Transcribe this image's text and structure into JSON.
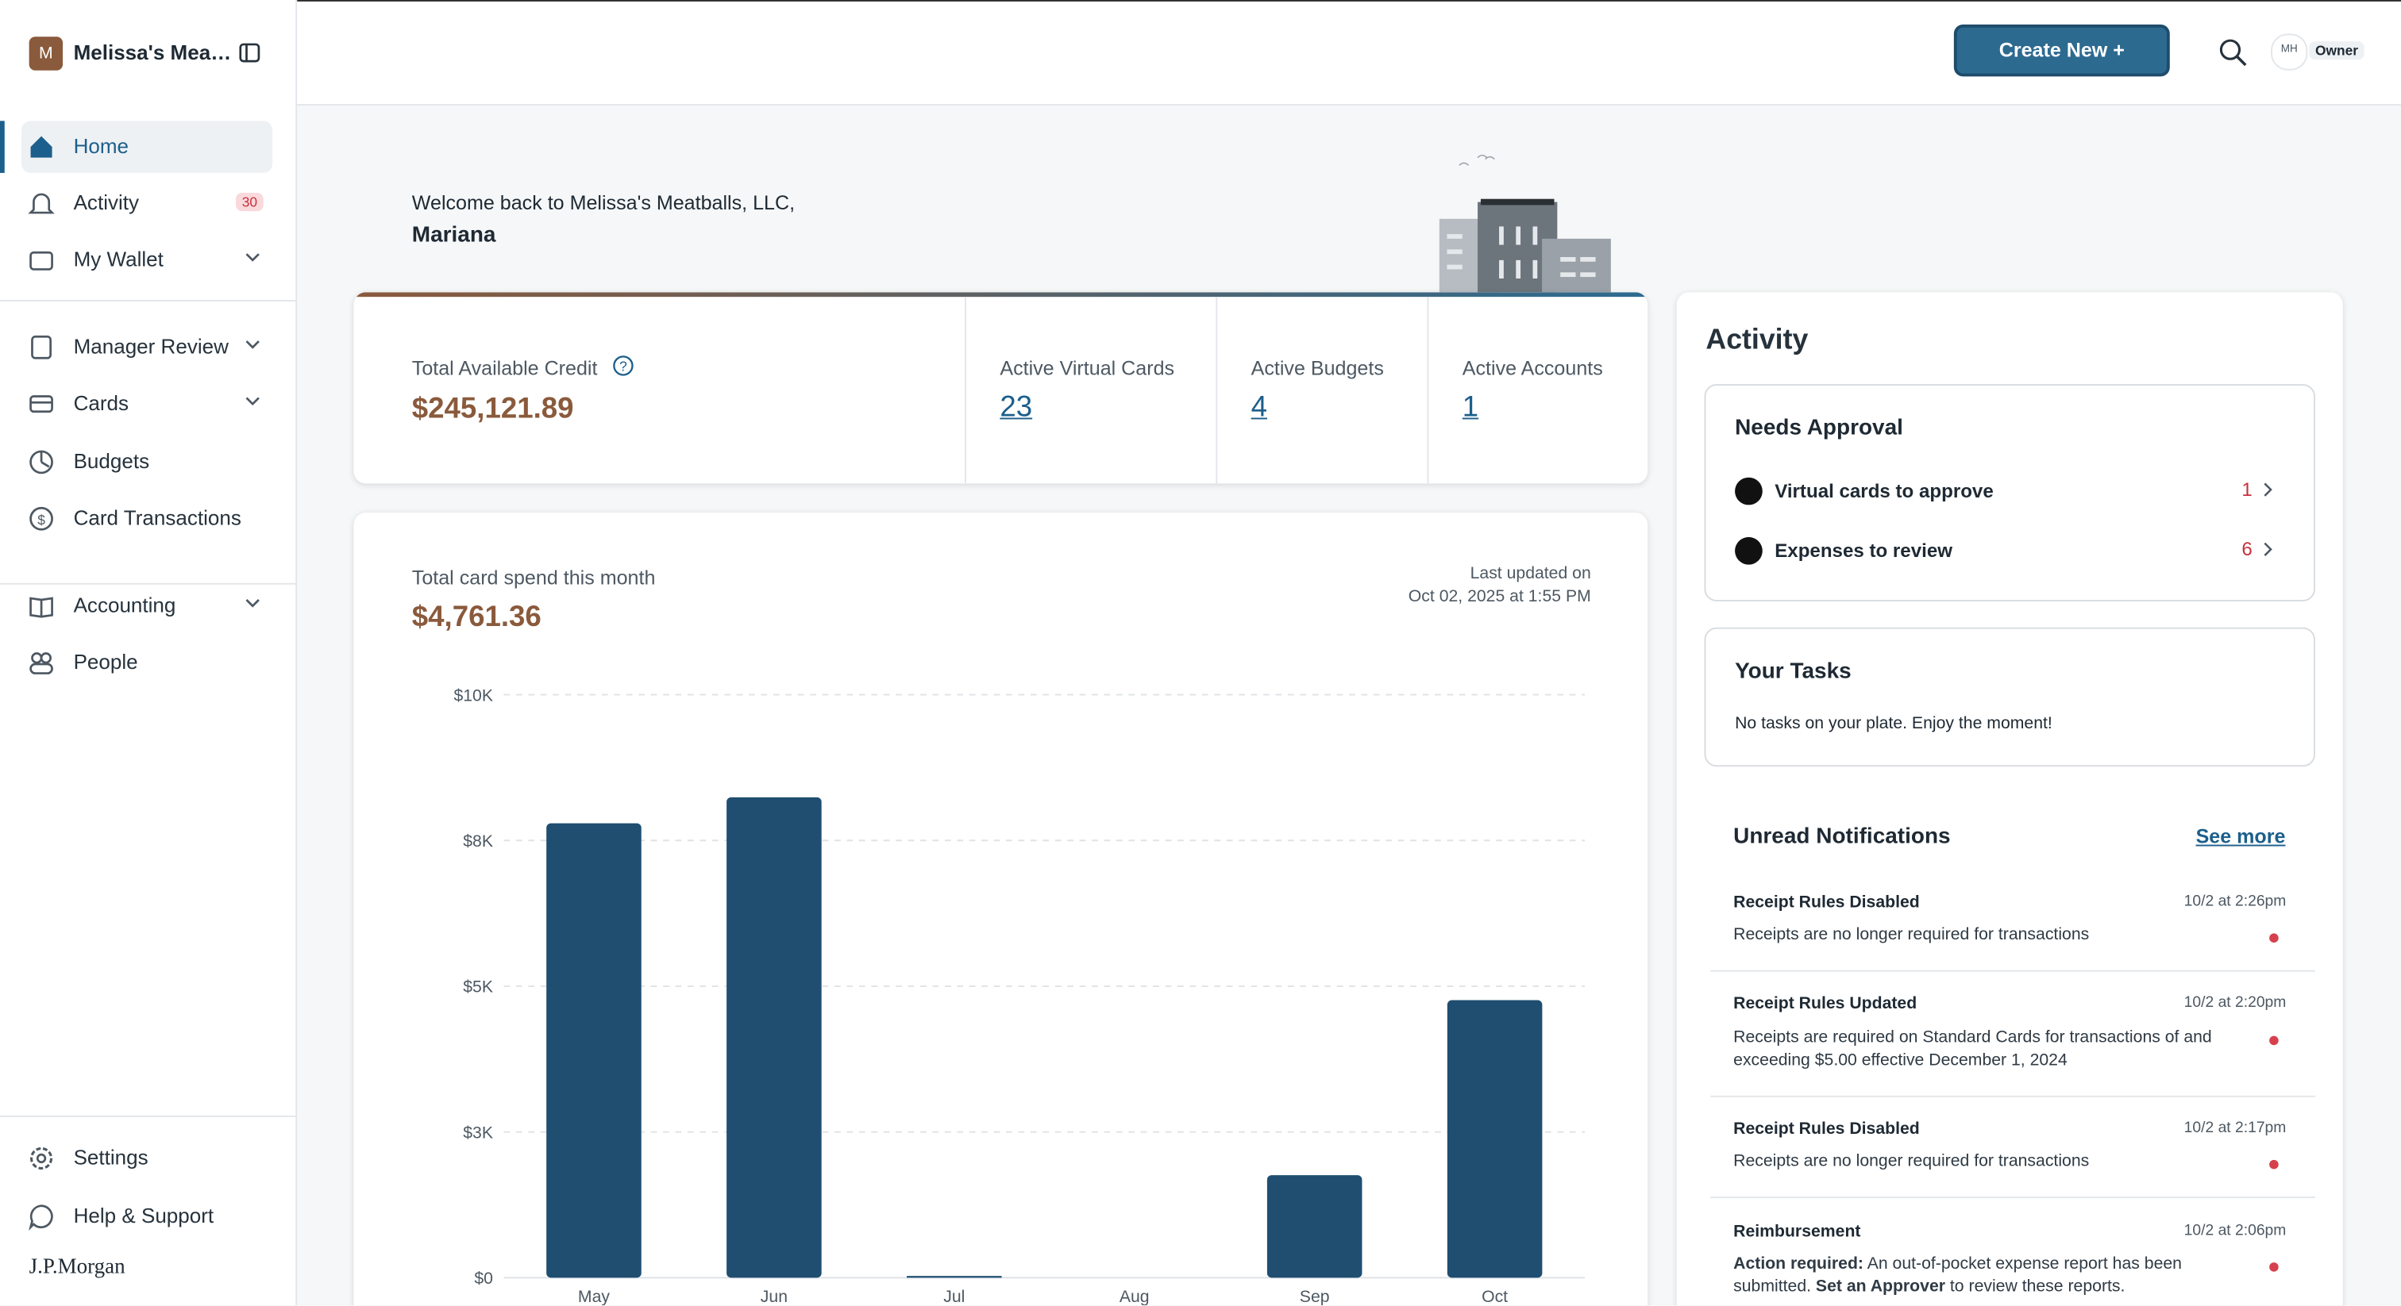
{
  "sidebar": {
    "org_initial": "M",
    "org_name": "Melissa's Mea…",
    "nav": [
      {
        "label": "Home"
      },
      {
        "label": "Activity",
        "badge": "30"
      },
      {
        "label": "My Wallet"
      },
      {
        "label": "Manager Review"
      },
      {
        "label": "Cards"
      },
      {
        "label": "Budgets"
      },
      {
        "label": "Card Transactions"
      },
      {
        "label": "Accounting"
      },
      {
        "label": "People"
      }
    ],
    "footer_nav": [
      {
        "label": "Settings"
      },
      {
        "label": "Help & Support"
      }
    ],
    "brand": "J.P.Morgan"
  },
  "header": {
    "create_button": "Create New +",
    "avatar": "MH",
    "role": "Owner"
  },
  "welcome": {
    "greeting": "Welcome back to Melissa's Meatballs, LLC,",
    "name": "Mariana"
  },
  "stats": [
    {
      "label": "Total Available Credit",
      "value": "$245,121.89"
    },
    {
      "label": "Active Virtual Cards",
      "value": "23"
    },
    {
      "label": "Active Budgets",
      "value": "4"
    },
    {
      "label": "Active Accounts",
      "value": "1"
    }
  ],
  "spend": {
    "label": "Total card spend this month",
    "amount": "$4,761.36",
    "updated_line1": "Last updated on",
    "updated_line2": "Oct 02, 2025 at 1:55 PM"
  },
  "chart_data": {
    "type": "bar",
    "categories": [
      "May",
      "Jun",
      "Jul",
      "Aug",
      "Sep",
      "Oct"
    ],
    "values": [
      7795,
      8241,
      30,
      0,
      1759,
      4761.36
    ],
    "color": "#1f4e70",
    "ylim": [
      0,
      10000
    ],
    "yticks": [
      {
        "value": 0,
        "label": "$0"
      },
      {
        "value": 2500,
        "label": "$3K"
      },
      {
        "value": 5000,
        "label": "$5K"
      },
      {
        "value": 7500,
        "label": "$8K"
      },
      {
        "value": 10000,
        "label": "$10K"
      }
    ],
    "grid": true
  },
  "activity": {
    "title": "Activity",
    "needs_approval": {
      "title": "Needs Approval",
      "items": [
        {
          "label": "Virtual cards to approve",
          "count": "1"
        },
        {
          "label": "Expenses to review",
          "count": "6"
        }
      ]
    },
    "tasks": {
      "title": "Your Tasks",
      "message": "No tasks on your plate. Enjoy the moment!"
    },
    "notifications": {
      "title": "Unread Notifications",
      "see_more": "See more",
      "items": [
        {
          "title": "Receipt Rules Disabled",
          "time": "10/2 at 2:26pm",
          "message": "Receipts are no longer required for transactions"
        },
        {
          "title": "Receipt Rules Updated",
          "time": "10/2 at 2:20pm",
          "message": "Receipts are required on Standard Cards for transactions of and exceeding $5.00 effective December 1, 2024"
        },
        {
          "title": "Receipt Rules Disabled",
          "time": "10/2 at 2:17pm",
          "message": "Receipts are no longer required for transactions"
        },
        {
          "title": "Reimbursement",
          "time": "10/2 at 2:06pm",
          "action_label": "Action required:",
          "message_a": "An out-of-pocket expense report has been submitted.",
          "action_link": "Set an Approver",
          "message_b": "to review these reports."
        }
      ]
    }
  }
}
